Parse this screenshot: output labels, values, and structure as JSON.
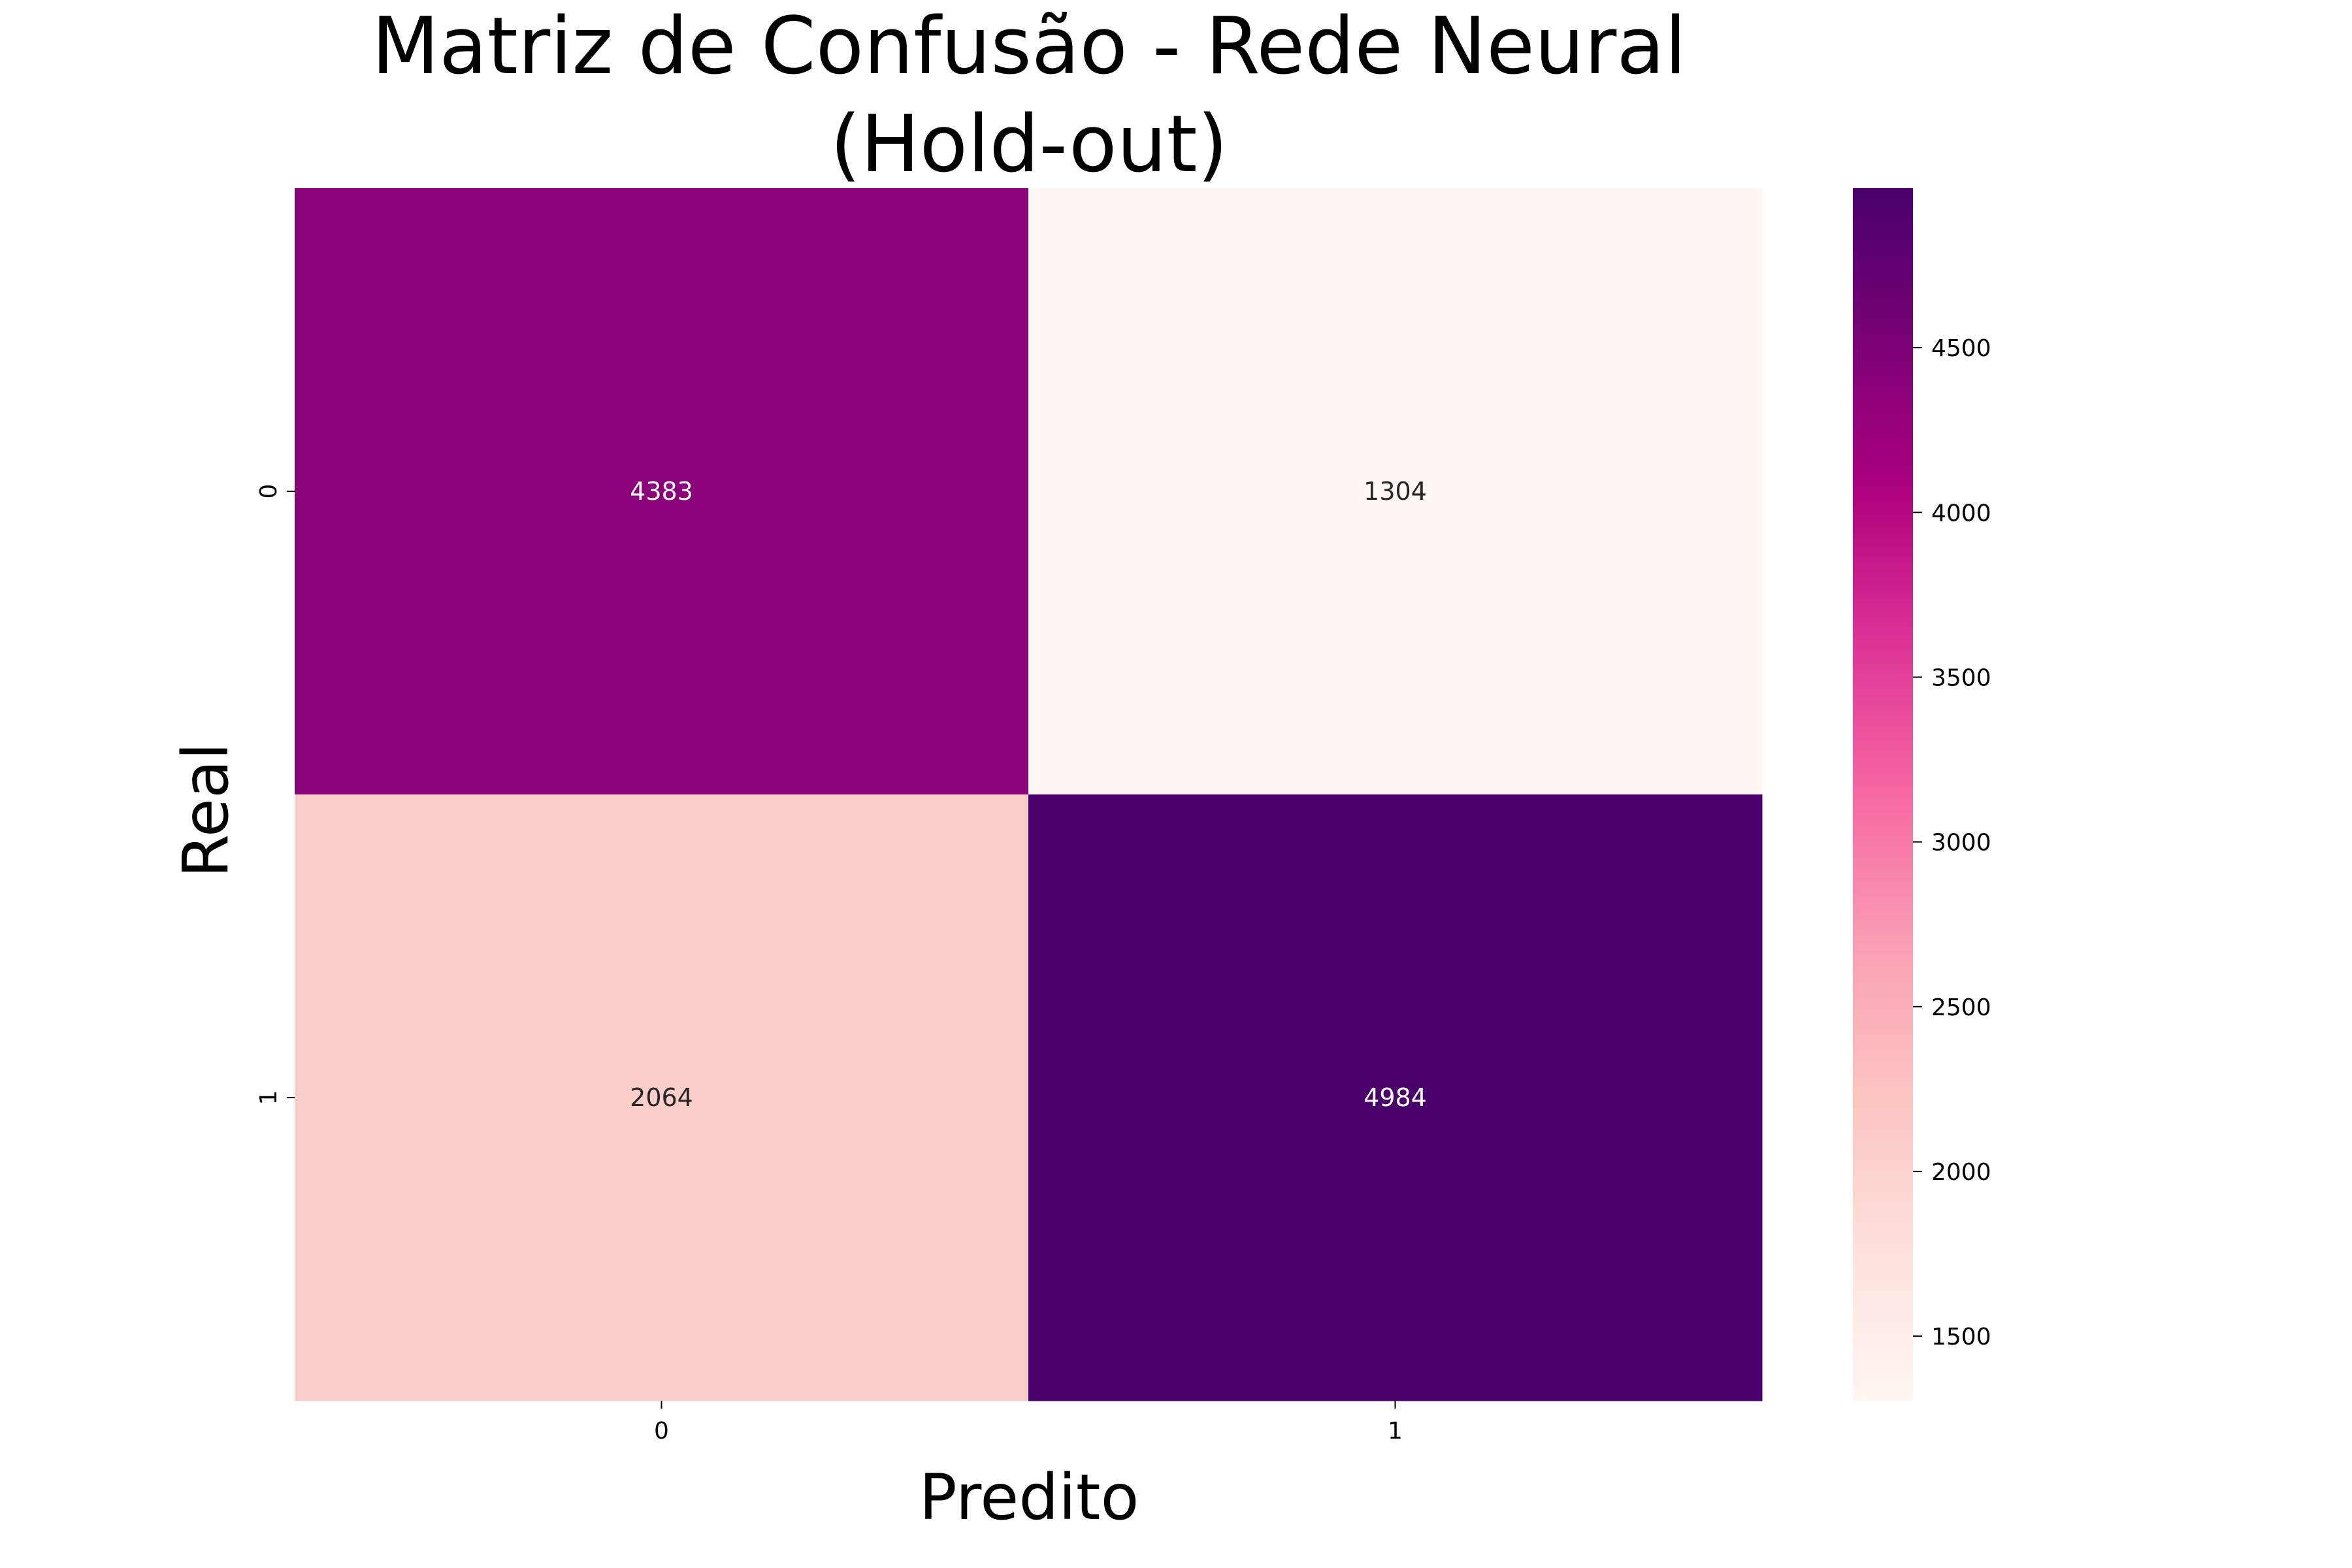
{
  "chart_data": {
    "type": "heatmap",
    "title": "Matriz de Confusão - Rede Neural\n(Hold-out)",
    "title_lines": [
      "Matriz de Confusão - Rede Neural",
      "(Hold-out)"
    ],
    "xlabel": "Predito",
    "ylabel": "Real",
    "x_categories": [
      "0",
      "1"
    ],
    "y_categories": [
      "0",
      "1"
    ],
    "values": [
      [
        4383,
        1304
      ],
      [
        2064,
        4984
      ]
    ],
    "value_labels": [
      [
        "4383",
        "1304"
      ],
      [
        "2064",
        "4984"
      ]
    ],
    "colormap": "RdPu",
    "colormap_stops": [
      "#fff7f3",
      "#fde0dd",
      "#fcc5c0",
      "#fa9fb5",
      "#f768a1",
      "#dd3497",
      "#ae017e",
      "#7a0177",
      "#49006a"
    ],
    "vmin": 1304,
    "vmax": 4984,
    "colorbar": {
      "ticks": [
        1500,
        2000,
        2500,
        3000,
        3500,
        4000,
        4500
      ],
      "tick_labels": [
        "1500",
        "2000",
        "2500",
        "3000",
        "3500",
        "4000",
        "4500"
      ]
    },
    "annotation_colors": {
      "light": "#ffffff",
      "dark": "#262626"
    }
  }
}
